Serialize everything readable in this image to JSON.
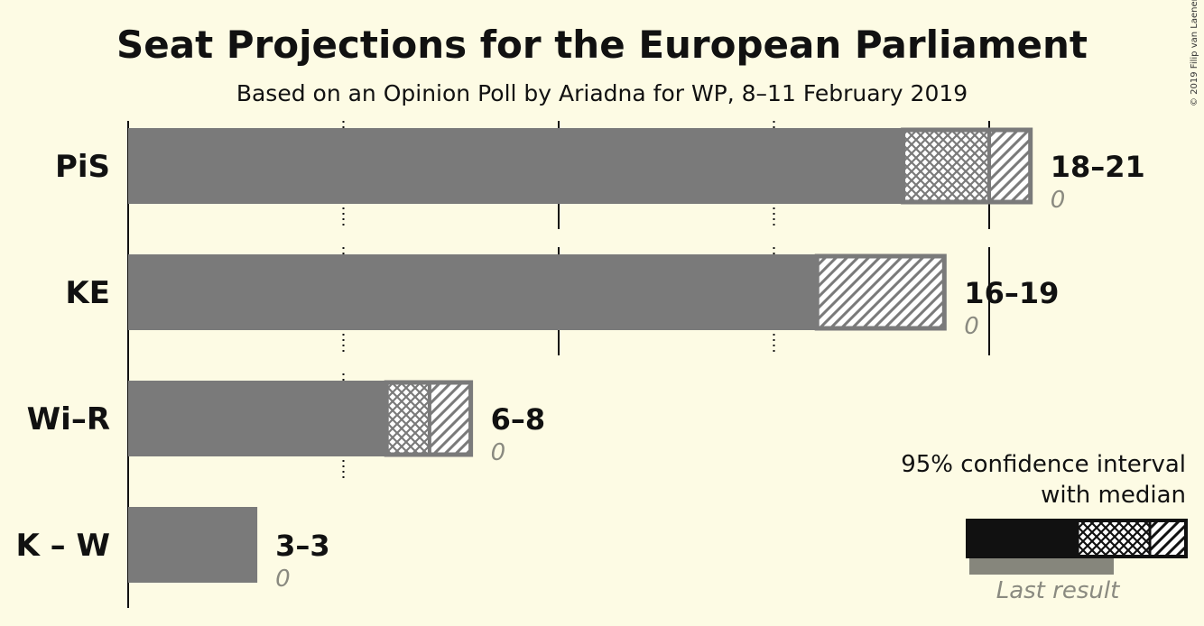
{
  "title": "Seat Projections for the European Parliament",
  "subtitle": "Based on an Opinion Poll by Ariadna for WP, 8–11 February 2019",
  "copyright": "© 2019 Filip van Laenen",
  "legend": {
    "title_line1": "95% confidence interval",
    "title_line2": "with median",
    "last_result": "Last result"
  },
  "colors": {
    "background": "#fdfbe4",
    "bar": "#7a7a7a",
    "last_result": "#86867c",
    "text": "#111111"
  },
  "chart_data": {
    "type": "bar",
    "orientation": "horizontal",
    "xlim": [
      0,
      21
    ],
    "gridlines": [
      5,
      10,
      15,
      20
    ],
    "categories": [
      "PiS",
      "KE",
      "Wi–R",
      "K – W"
    ],
    "series": [
      {
        "party": "PiS",
        "low": 18,
        "median": 20,
        "high": 21,
        "range_label": "18–21",
        "last_result": 0,
        "last_label": "0"
      },
      {
        "party": "KE",
        "low": 16,
        "median": 16,
        "high": 19,
        "range_label": "16–19",
        "last_result": 0,
        "last_label": "0"
      },
      {
        "party": "Wi–R",
        "low": 6,
        "median": 7,
        "high": 8,
        "range_label": "6–8",
        "last_result": 0,
        "last_label": "0"
      },
      {
        "party": "K – W",
        "low": 3,
        "median": 3,
        "high": 3,
        "range_label": "3–3",
        "last_result": 0,
        "last_label": "0"
      }
    ]
  }
}
